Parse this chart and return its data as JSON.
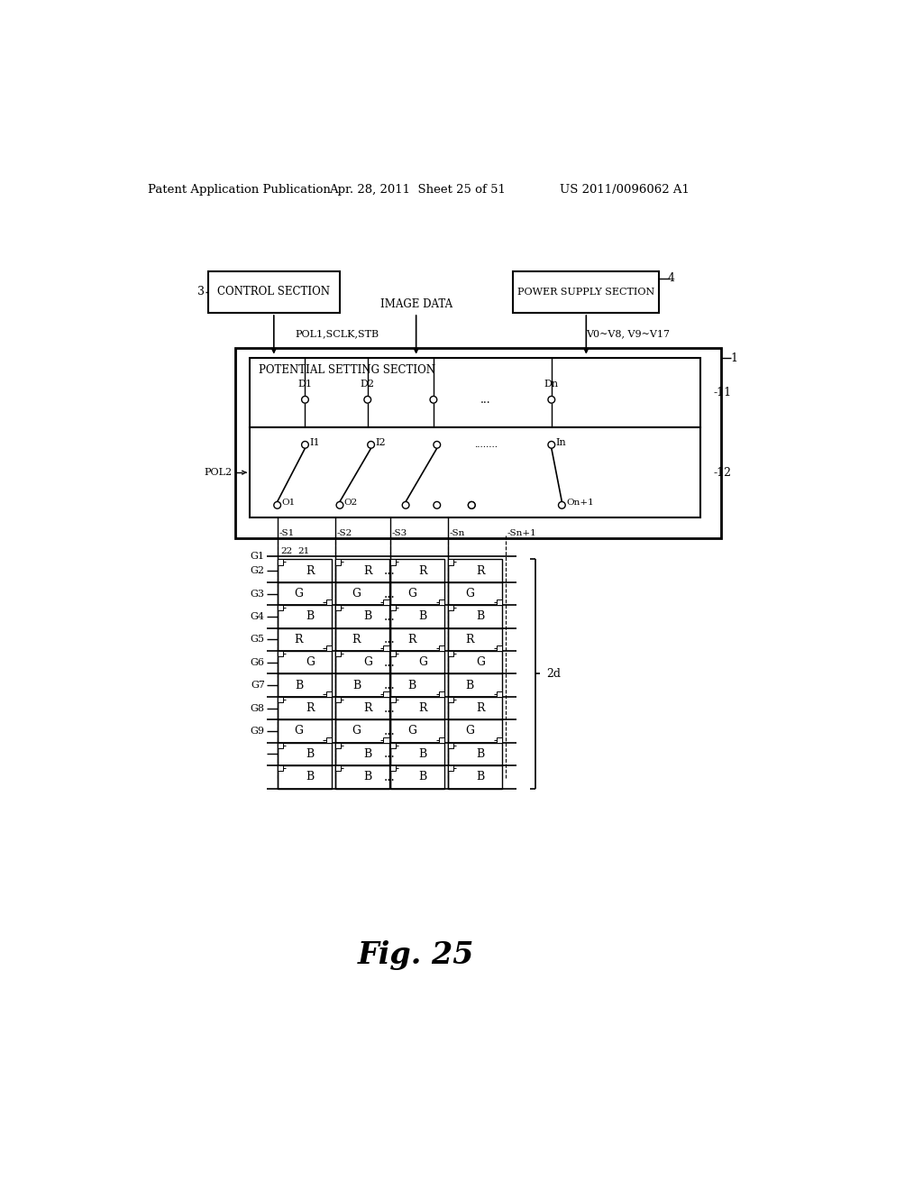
{
  "bg_color": "#ffffff",
  "header_left": "Patent Application Publication",
  "header_mid": "Apr. 28, 2011  Sheet 25 of 51",
  "header_right": "US 2011/0096062 A1",
  "fig_label": "Fig. 25"
}
